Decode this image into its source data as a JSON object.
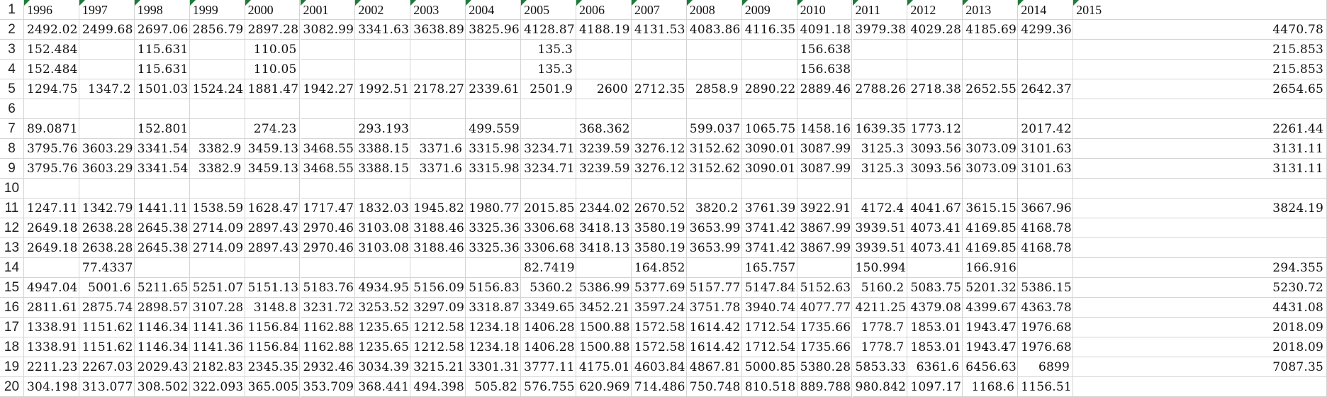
{
  "sheet": {
    "columns": [
      "1996",
      "1997",
      "1998",
      "1999",
      "2000",
      "2001",
      "2002",
      "2003",
      "2004",
      "2005",
      "2006",
      "2007",
      "2008",
      "2009",
      "2010",
      "2011",
      "2012",
      "2013",
      "2014",
      "2015"
    ],
    "rows": [
      {
        "num": "1",
        "cells": [
          "1996",
          "1997",
          "1998",
          "1999",
          "2000",
          "2001",
          "2002",
          "2003",
          "2004",
          "2005",
          "2006",
          "2007",
          "2008",
          "2009",
          "2010",
          "2011",
          "2012",
          "2013",
          "2014",
          "2015"
        ]
      },
      {
        "num": "2",
        "cells": [
          "2492.02",
          "2499.68",
          "2697.06",
          "2856.79",
          "2897.28",
          "3082.99",
          "3341.63",
          "3638.89",
          "3825.96",
          "4128.87",
          "4188.19",
          "4131.53",
          "4083.86",
          "4116.35",
          "4091.18",
          "3979.38",
          "4029.28",
          "4185.69",
          "4299.36",
          "4470.78"
        ]
      },
      {
        "num": "3",
        "cells": [
          "152.484",
          "",
          "115.631",
          "",
          "110.05",
          "",
          "",
          "",
          "",
          "135.3",
          "",
          "",
          "",
          "",
          "156.638",
          "",
          "",
          "",
          "",
          "215.853"
        ]
      },
      {
        "num": "4",
        "cells": [
          "152.484",
          "",
          "115.631",
          "",
          "110.05",
          "",
          "",
          "",
          "",
          "135.3",
          "",
          "",
          "",
          "",
          "156.638",
          "",
          "",
          "",
          "",
          "215.853"
        ]
      },
      {
        "num": "5",
        "cells": [
          "1294.75",
          "1347.2",
          "1501.03",
          "1524.24",
          "1881.47",
          "1942.27",
          "1992.51",
          "2178.27",
          "2339.61",
          "2501.9",
          "2600",
          "2712.35",
          "2858.9",
          "2890.22",
          "2889.46",
          "2788.26",
          "2718.38",
          "2652.55",
          "2642.37",
          "2654.65"
        ]
      },
      {
        "num": "6",
        "cells": [
          "",
          "",
          "",
          "",
          "",
          "",
          "",
          "",
          "",
          "",
          "",
          "",
          "",
          "",
          "",
          "",
          "",
          "",
          "",
          ""
        ]
      },
      {
        "num": "7",
        "cells": [
          "89.0871",
          "",
          "152.801",
          "",
          "274.23",
          "",
          "293.193",
          "",
          "499.559",
          "",
          "368.362",
          "",
          "599.037",
          "1065.75",
          "1458.16",
          "1639.35",
          "1773.12",
          "",
          "2017.42",
          "2261.44"
        ]
      },
      {
        "num": "8",
        "cells": [
          "3795.76",
          "3603.29",
          "3341.54",
          "3382.9",
          "3459.13",
          "3468.55",
          "3388.15",
          "3371.6",
          "3315.98",
          "3234.71",
          "3239.59",
          "3276.12",
          "3152.62",
          "3090.01",
          "3087.99",
          "3125.3",
          "3093.56",
          "3073.09",
          "3101.63",
          "3131.11"
        ]
      },
      {
        "num": "9",
        "cells": [
          "3795.76",
          "3603.29",
          "3341.54",
          "3382.9",
          "3459.13",
          "3468.55",
          "3388.15",
          "3371.6",
          "3315.98",
          "3234.71",
          "3239.59",
          "3276.12",
          "3152.62",
          "3090.01",
          "3087.99",
          "3125.3",
          "3093.56",
          "3073.09",
          "3101.63",
          "3131.11"
        ]
      },
      {
        "num": "10",
        "cells": [
          "",
          "",
          "",
          "",
          "",
          "",
          "",
          "",
          "",
          "",
          "",
          "",
          "",
          "",
          "",
          "",
          "",
          "",
          "",
          ""
        ]
      },
      {
        "num": "11",
        "cells": [
          "1247.11",
          "1342.79",
          "1441.11",
          "1538.59",
          "1628.47",
          "1717.47",
          "1832.03",
          "1945.82",
          "1980.77",
          "2015.85",
          "2344.02",
          "2670.52",
          "3820.2",
          "3761.39",
          "3922.91",
          "4172.4",
          "4041.67",
          "3615.15",
          "3667.96",
          "3824.19"
        ]
      },
      {
        "num": "12",
        "cells": [
          "2649.18",
          "2638.28",
          "2645.38",
          "2714.09",
          "2897.43",
          "2970.46",
          "3103.08",
          "3188.46",
          "3325.36",
          "3306.68",
          "3418.13",
          "3580.19",
          "3653.99",
          "3741.42",
          "3867.99",
          "3939.51",
          "4073.41",
          "4169.85",
          "4168.78",
          ""
        ]
      },
      {
        "num": "13",
        "cells": [
          "2649.18",
          "2638.28",
          "2645.38",
          "2714.09",
          "2897.43",
          "2970.46",
          "3103.08",
          "3188.46",
          "3325.36",
          "3306.68",
          "3418.13",
          "3580.19",
          "3653.99",
          "3741.42",
          "3867.99",
          "3939.51",
          "4073.41",
          "4169.85",
          "4168.78",
          ""
        ]
      },
      {
        "num": "14",
        "cells": [
          "",
          "77.4337",
          "",
          "",
          "",
          "",
          "",
          "",
          "",
          "82.7419",
          "",
          "164.852",
          "",
          "165.757",
          "",
          "150.994",
          "",
          "166.916",
          "",
          "294.355"
        ]
      },
      {
        "num": "15",
        "cells": [
          "4947.04",
          "5001.6",
          "5211.65",
          "5251.07",
          "5151.13",
          "5183.76",
          "4934.95",
          "5156.09",
          "5156.83",
          "5360.2",
          "5386.99",
          "5377.69",
          "5157.77",
          "5147.84",
          "5152.63",
          "5160.2",
          "5083.75",
          "5201.32",
          "5386.15",
          "5230.72"
        ]
      },
      {
        "num": "16",
        "cells": [
          "2811.61",
          "2875.74",
          "2898.57",
          "3107.28",
          "3148.8",
          "3231.72",
          "3253.52",
          "3297.09",
          "3318.87",
          "3349.65",
          "3452.21",
          "3597.24",
          "3751.78",
          "3940.74",
          "4077.77",
          "4211.25",
          "4379.08",
          "4399.67",
          "4363.78",
          "4431.08"
        ]
      },
      {
        "num": "17",
        "cells": [
          "1338.91",
          "1151.62",
          "1146.34",
          "1141.36",
          "1156.84",
          "1162.88",
          "1235.65",
          "1212.58",
          "1234.18",
          "1406.28",
          "1500.88",
          "1572.58",
          "1614.42",
          "1712.54",
          "1735.66",
          "1778.7",
          "1853.01",
          "1943.47",
          "1976.68",
          "2018.09"
        ]
      },
      {
        "num": "18",
        "cells": [
          "1338.91",
          "1151.62",
          "1146.34",
          "1141.36",
          "1156.84",
          "1162.88",
          "1235.65",
          "1212.58",
          "1234.18",
          "1406.28",
          "1500.88",
          "1572.58",
          "1614.42",
          "1712.54",
          "1735.66",
          "1778.7",
          "1853.01",
          "1943.47",
          "1976.68",
          "2018.09"
        ]
      },
      {
        "num": "19",
        "cells": [
          "2211.23",
          "2267.03",
          "2029.43",
          "2182.83",
          "2345.35",
          "2932.46",
          "3034.39",
          "3215.21",
          "3301.31",
          "3777.11",
          "4175.01",
          "4603.84",
          "4867.81",
          "5000.85",
          "5380.28",
          "5853.33",
          "6361.6",
          "6456.63",
          "6899",
          "7087.35"
        ]
      },
      {
        "num": "20",
        "cells": [
          "304.198",
          "313.077",
          "308.502",
          "322.093",
          "365.005",
          "353.709",
          "368.441",
          "494.398",
          "505.82",
          "576.755",
          "620.969",
          "714.486",
          "750.748",
          "810.518",
          "889.788",
          "980.842",
          "1097.17",
          "1168.6",
          "1156.51",
          ""
        ]
      }
    ]
  }
}
